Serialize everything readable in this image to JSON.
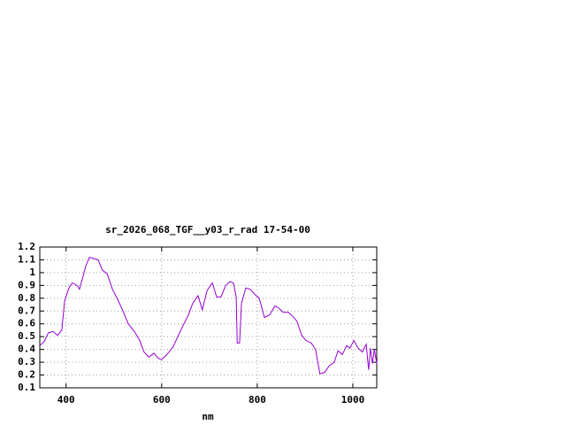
{
  "chart_data": {
    "type": "line",
    "title": "sr_2026_068_TGF__y03_r_rad 17-54-00",
    "x_label": "nm",
    "x": [
      345,
      354,
      363,
      373,
      382,
      391,
      397,
      406,
      413,
      423,
      428,
      434,
      441,
      449,
      458,
      467,
      476,
      486,
      497,
      508,
      519,
      530,
      543,
      554,
      563,
      573,
      584,
      593,
      600,
      611,
      624,
      635,
      645,
      656,
      665,
      676,
      685,
      695,
      706,
      715,
      724,
      734,
      743,
      750,
      756,
      758,
      763,
      767,
      776,
      785,
      795,
      804,
      815,
      826,
      837,
      846,
      854,
      865,
      874,
      883,
      893,
      902,
      913,
      922,
      931,
      941,
      950,
      961,
      969,
      978,
      987,
      994,
      1002,
      1011,
      1020,
      1028,
      1033,
      1037,
      1041,
      1045,
      1050
    ],
    "series": [
      {
        "color": "#9400d3",
        "values": [
          0.43,
          0.46,
          0.53,
          0.54,
          0.51,
          0.55,
          0.78,
          0.88,
          0.92,
          0.9,
          0.87,
          0.95,
          1.05,
          1.12,
          1.11,
          1.1,
          1.02,
          0.99,
          0.87,
          0.79,
          0.7,
          0.6,
          0.54,
          0.47,
          0.38,
          0.34,
          0.37,
          0.33,
          0.32,
          0.36,
          0.42,
          0.51,
          0.59,
          0.67,
          0.76,
          0.82,
          0.71,
          0.86,
          0.92,
          0.81,
          0.81,
          0.9,
          0.93,
          0.92,
          0.81,
          0.45,
          0.45,
          0.76,
          0.88,
          0.87,
          0.83,
          0.8,
          0.65,
          0.67,
          0.74,
          0.72,
          0.69,
          0.69,
          0.66,
          0.62,
          0.51,
          0.47,
          0.45,
          0.4,
          0.21,
          0.22,
          0.27,
          0.3,
          0.39,
          0.36,
          0.43,
          0.41,
          0.47,
          0.41,
          0.38,
          0.44,
          0.24,
          0.41,
          0.29,
          0.4,
          0.29
        ]
      }
    ],
    "xlim": [
      345,
      1050
    ],
    "xticks": [
      400,
      600,
      800,
      1000
    ],
    "ylim": [
      0.1,
      1.2
    ],
    "yticks": [
      0.1,
      0.2,
      0.3,
      0.4,
      0.5,
      0.6,
      0.7,
      0.8,
      0.9,
      1,
      1.1,
      1.2
    ],
    "grid": true
  }
}
